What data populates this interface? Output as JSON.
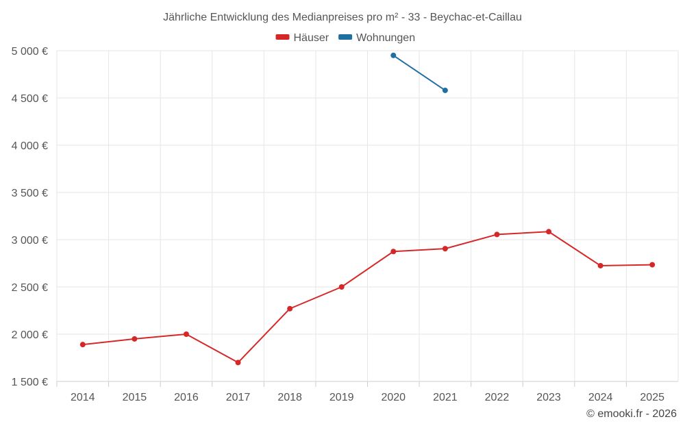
{
  "chart_data": {
    "type": "line",
    "title": "Jährliche Entwicklung des Medianpreises pro m² - 33 - Beychac-et-Caillau",
    "x": [
      "2014",
      "2015",
      "2016",
      "2017",
      "2018",
      "2019",
      "2020",
      "2021",
      "2022",
      "2023",
      "2024",
      "2025"
    ],
    "ylim": [
      1500,
      5000
    ],
    "yticks": [
      1500,
      2000,
      2500,
      3000,
      3500,
      4000,
      4500,
      5000
    ],
    "ytick_labels": [
      "1 500 €",
      "2 000 €",
      "2 500 €",
      "3 000 €",
      "3 500 €",
      "4 000 €",
      "4 500 €",
      "5 000 €"
    ],
    "series": [
      {
        "name": "Häuser",
        "color": "#d62728",
        "values": [
          1890,
          1950,
          2000,
          1700,
          2270,
          2500,
          2875,
          2905,
          3055,
          3085,
          2725,
          2735
        ]
      },
      {
        "name": "Wohnungen",
        "color": "#1f6fa3",
        "values": [
          null,
          null,
          null,
          null,
          null,
          null,
          4950,
          4580,
          null,
          null,
          null,
          null
        ]
      }
    ],
    "legend_position": "top-center",
    "grid": true,
    "credit": "© emooki.fr - 2026"
  }
}
